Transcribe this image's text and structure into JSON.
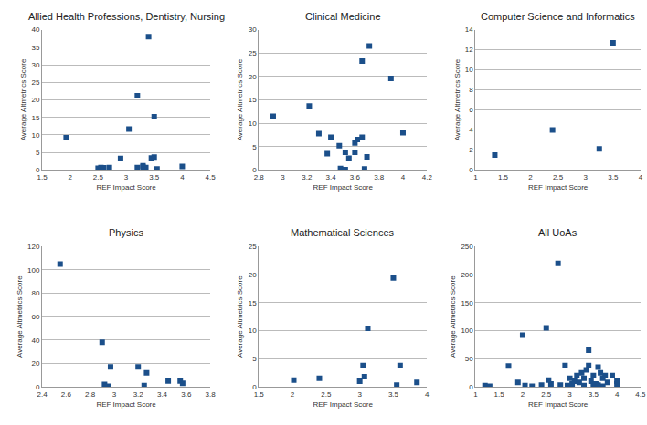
{
  "chart_data": [
    {
      "type": "scatter",
      "title": "Allied Health Professions, Dentistry, Nursing",
      "x_label": "REF Impact Score",
      "y_label": "Average Altmetrics Score",
      "x": [
        1.93,
        2.5,
        2.55,
        2.6,
        2.7,
        2.9,
        3.05,
        3.2,
        3.2,
        3.3,
        3.3,
        3.35,
        3.4,
        3.45,
        3.5,
        3.5,
        3.55,
        4.0
      ],
      "values": [
        9.2,
        0.5,
        0.7,
        0.6,
        0.7,
        3.3,
        11.7,
        21.2,
        0.7,
        1.2,
        0.8,
        0.7,
        38,
        3.4,
        15.2,
        3.7,
        0.3,
        1.0
      ],
      "xlim": [
        1.5,
        4.5
      ],
      "xticks": [
        1.5,
        2,
        2.5,
        3,
        3.5,
        4,
        4.5
      ],
      "ylim": [
        0,
        40
      ],
      "yticks": [
        0,
        5,
        10,
        15,
        20,
        25,
        30,
        35,
        40
      ],
      "color": "#1b4f8a",
      "marker": "square",
      "grid": true
    },
    {
      "type": "scatter",
      "title": "Clinical Medicine",
      "x_label": "REF Impact Score",
      "y_label": "Average Altmetrics Score",
      "x": [
        2.92,
        3.22,
        3.3,
        3.37,
        3.4,
        3.47,
        3.48,
        3.52,
        3.52,
        3.55,
        3.6,
        3.6,
        3.62,
        3.66,
        3.66,
        3.68,
        3.7,
        3.72,
        3.9,
        4.0
      ],
      "values": [
        11.5,
        13.7,
        7.8,
        3.5,
        7.0,
        5.2,
        0.3,
        3.8,
        0.1,
        2.5,
        3.8,
        5.8,
        6.5,
        7.0,
        23.3,
        0.2,
        2.8,
        26.5,
        19.6,
        8.0
      ],
      "xlim": [
        2.8,
        4.2
      ],
      "xticks": [
        2.8,
        3,
        3.2,
        3.4,
        3.6,
        3.8,
        4,
        4.2
      ],
      "ylim": [
        0,
        30
      ],
      "yticks": [
        0,
        5,
        10,
        15,
        20,
        25,
        30
      ],
      "color": "#1b4f8a",
      "marker": "square",
      "grid": true
    },
    {
      "type": "scatter",
      "title": "Computer Science and Informatics",
      "x_label": "REF Impact Score",
      "y_label": "Average Altmetrics Score",
      "x": [
        1.35,
        2.4,
        3.25,
        3.5
      ],
      "values": [
        1.5,
        4.0,
        2.1,
        12.7
      ],
      "xlim": [
        1,
        4
      ],
      "xticks": [
        1,
        1.5,
        2,
        2.5,
        3,
        3.5,
        4
      ],
      "ylim": [
        0,
        14
      ],
      "yticks": [
        0,
        2,
        4,
        6,
        8,
        10,
        12,
        14
      ],
      "color": "#1b4f8a",
      "marker": "square",
      "grid": true
    },
    {
      "type": "scatter",
      "title": "Physics",
      "x_label": "REF Impact Score",
      "y_label": "Average Altmetrics Score",
      "x": [
        2.55,
        2.9,
        2.92,
        2.95,
        2.97,
        3.2,
        3.25,
        3.27,
        3.45,
        3.55,
        3.57
      ],
      "values": [
        105,
        38,
        2,
        0.5,
        17,
        17,
        1,
        12,
        5,
        5,
        3
      ],
      "xlim": [
        2.4,
        3.8
      ],
      "xticks": [
        2.4,
        2.6,
        2.8,
        3,
        3.2,
        3.4,
        3.6,
        3.8
      ],
      "ylim": [
        0,
        120
      ],
      "yticks": [
        0,
        20,
        40,
        60,
        80,
        100,
        120
      ],
      "color": "#1b4f8a",
      "marker": "square",
      "grid": true
    },
    {
      "type": "scatter",
      "title": "Mathematical Sciences",
      "x_label": "REF Impact Score",
      "y_label": "Average Altmetrics Score",
      "x": [
        2.02,
        2.4,
        3.0,
        3.05,
        3.07,
        3.12,
        3.5,
        3.55,
        3.6,
        3.85
      ],
      "values": [
        1.2,
        1.5,
        1.0,
        3.8,
        1.8,
        10.4,
        19.4,
        0.3,
        3.8,
        0.8
      ],
      "xlim": [
        1.5,
        4
      ],
      "xticks": [
        1.5,
        2,
        2.5,
        3,
        3.5,
        4
      ],
      "ylim": [
        0,
        25
      ],
      "yticks": [
        0,
        5,
        10,
        15,
        20,
        25
      ],
      "color": "#1b4f8a",
      "marker": "square",
      "grid": true
    },
    {
      "type": "scatter",
      "title": "All UoAs",
      "x_label": "REF Impact Score",
      "y_label": "Average Altmetrics Score",
      "x": [
        1.2,
        1.3,
        1.7,
        1.9,
        2.0,
        2.05,
        2.2,
        2.4,
        2.5,
        2.55,
        2.6,
        2.75,
        2.8,
        2.9,
        2.95,
        3.0,
        3.05,
        3.1,
        3.15,
        3.2,
        3.25,
        3.3,
        3.3,
        3.35,
        3.4,
        3.4,
        3.45,
        3.5,
        3.5,
        3.55,
        3.6,
        3.6,
        3.65,
        3.7,
        3.7,
        3.75,
        3.8,
        3.9,
        4.0,
        4.0
      ],
      "values": [
        2,
        1,
        37,
        8,
        92,
        2,
        1,
        3,
        105,
        12,
        5,
        220,
        3,
        38,
        2,
        15,
        5,
        10,
        20,
        8,
        25,
        15,
        2,
        30,
        65,
        38,
        10,
        20,
        2,
        5,
        35,
        3,
        25,
        15,
        1,
        20,
        8,
        20,
        5,
        10
      ],
      "xlim": [
        1,
        4.5
      ],
      "xticks": [
        1,
        1.5,
        2,
        2.5,
        3,
        3.5,
        4,
        4.5
      ],
      "ylim": [
        0,
        250
      ],
      "yticks": [
        0,
        50,
        100,
        150,
        200,
        250
      ],
      "color": "#1b4f8a",
      "marker": "square",
      "grid": true
    }
  ]
}
